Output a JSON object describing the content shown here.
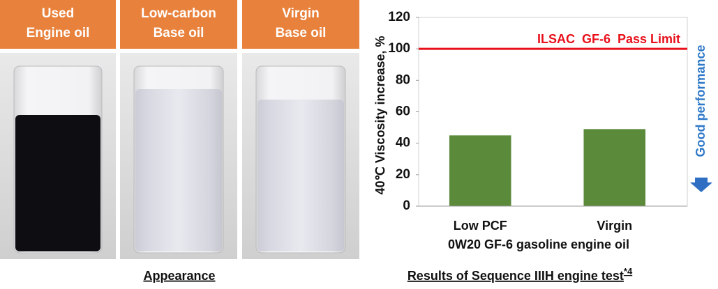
{
  "appearance": {
    "headers": [
      [
        "Used",
        "Engine oil"
      ],
      [
        "Low-carbon",
        "Base oil"
      ],
      [
        "Virgin",
        "Base oil"
      ]
    ],
    "caption": "Appearance"
  },
  "chart_data": {
    "type": "bar",
    "y_label": "40℃ Viscosity increase, %",
    "x_label": "0W20 GF-6 gasoline engine oil",
    "categories": [
      "Low PCF",
      "Virgin"
    ],
    "values": [
      45,
      49
    ],
    "color": "#5b8a3a",
    "ylim": [
      0,
      120
    ],
    "yticks": [
      0,
      20,
      40,
      60,
      80,
      100,
      120
    ],
    "reference_line": {
      "value": 100,
      "label": "ILSAC  GF-6  Pass Limit",
      "color": "#e8101a"
    },
    "side_note": "Good performance",
    "caption": "Results of Sequence IIIH engine test",
    "caption_note": "*4"
  }
}
